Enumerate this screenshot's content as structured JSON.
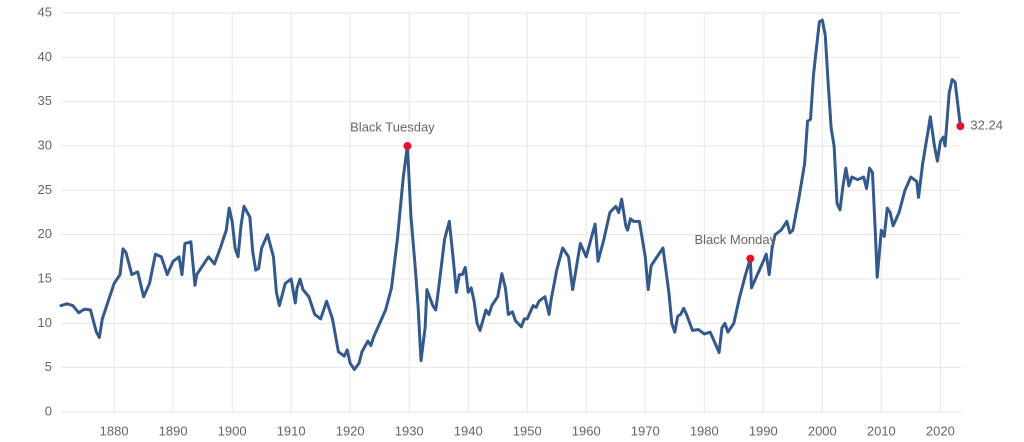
{
  "chart_data": {
    "type": "line",
    "xlim": [
      1871,
      2023.5
    ],
    "ylim": [
      0,
      45
    ],
    "xticks": [
      1880,
      1890,
      1900,
      1910,
      1920,
      1930,
      1940,
      1950,
      1960,
      1970,
      1980,
      1990,
      2000,
      2010,
      2020
    ],
    "yticks": [
      0,
      5,
      10,
      15,
      20,
      25,
      30,
      35,
      40,
      45
    ],
    "grid": true,
    "series": [
      {
        "color": "#34598c",
        "x": [
          1871,
          1872,
          1873,
          1874,
          1875,
          1876,
          1877,
          1877.5,
          1878,
          1879,
          1880,
          1881,
          1881.5,
          1882,
          1883,
          1884,
          1885,
          1886,
          1887,
          1888,
          1889,
          1890,
          1891,
          1891.5,
          1892,
          1893,
          1893.7,
          1894,
          1895,
          1896,
          1897,
          1898,
          1899,
          1899.5,
          1900,
          1900.5,
          1901,
          1901.5,
          1902,
          1903,
          1903.5,
          1904,
          1904.5,
          1905,
          1906,
          1907,
          1907.5,
          1908,
          1909,
          1910,
          1910.7,
          1911,
          1911.5,
          1912,
          1913,
          1914,
          1915,
          1916,
          1917,
          1918,
          1919,
          1919.5,
          1920,
          1920.7,
          1921.5,
          1922,
          1923,
          1923.5,
          1924,
          1925,
          1926,
          1927,
          1928,
          1929,
          1929.7,
          1930.3,
          1931,
          1931.5,
          1932,
          1932.7,
          1933,
          1934,
          1934.5,
          1935,
          1936,
          1936.8,
          1937.5,
          1938,
          1938.5,
          1939,
          1939.5,
          1940,
          1940.5,
          1941,
          1941.5,
          1942,
          1943,
          1943.5,
          1944,
          1945,
          1945.7,
          1946.3,
          1946.8,
          1947.5,
          1948,
          1949,
          1949.5,
          1950,
          1951,
          1951.5,
          1952,
          1953,
          1953.7,
          1954,
          1955,
          1956,
          1957,
          1957.7,
          1958,
          1959,
          1960,
          1961,
          1961.5,
          1962,
          1963,
          1964,
          1965,
          1965.5,
          1966,
          1966.7,
          1967,
          1967.5,
          1968,
          1969,
          1970,
          1970.5,
          1971,
          1972,
          1973,
          1974,
          1974.5,
          1975,
          1975.5,
          1976,
          1976.5,
          1977,
          1978,
          1979,
          1980,
          1981,
          1982,
          1982.5,
          1983,
          1983.5,
          1984,
          1985,
          1986,
          1987,
          1987.8,
          1988,
          1989,
          1990,
          1990.5,
          1991,
          1991.5,
          1992,
          1993,
          1994,
          1994.5,
          1995,
          1996,
          1997,
          1997.5,
          1998,
          1998.5,
          1999,
          1999.5,
          2000,
          2000.5,
          2001,
          2001.5,
          2002,
          2002.5,
          2003,
          2003.5,
          2004,
          2004.5,
          2005,
          2006,
          2007,
          2007.5,
          2008,
          2008.5,
          2009,
          2009.3,
          2010,
          2010.5,
          2011,
          2011.5,
          2012,
          2013,
          2014,
          2015,
          2016,
          2016.3,
          2017,
          2018,
          2018.3,
          2019,
          2019.5,
          2020,
          2020.5,
          2020.8,
          2021.5,
          2022,
          2022.5,
          2023.4
        ],
        "values": [
          12.0,
          12.2,
          12.0,
          11.2,
          11.6,
          11.5,
          9.0,
          8.4,
          10.5,
          12.5,
          14.5,
          15.5,
          18.4,
          18.0,
          15.5,
          15.8,
          13.0,
          14.5,
          17.8,
          17.5,
          15.5,
          17.0,
          17.5,
          15.5,
          19.0,
          19.2,
          14.3,
          15.5,
          16.5,
          17.5,
          16.7,
          18.5,
          20.5,
          23.0,
          21.5,
          18.5,
          17.5,
          21.0,
          23.2,
          22.0,
          18.0,
          16.0,
          16.2,
          18.5,
          20.0,
          17.5,
          13.5,
          12.0,
          14.5,
          15.0,
          12.3,
          14.0,
          15.0,
          13.8,
          13.0,
          11.0,
          10.5,
          12.5,
          10.5,
          6.8,
          6.3,
          7.0,
          5.5,
          4.8,
          5.5,
          6.8,
          8.0,
          7.5,
          8.5,
          10.0,
          11.5,
          14.0,
          19.5,
          26.5,
          30.0,
          22.0,
          16.5,
          12.0,
          5.8,
          9.5,
          13.8,
          12.0,
          11.5,
          14.0,
          19.5,
          21.5,
          17.0,
          13.5,
          15.5,
          15.5,
          16.3,
          13.5,
          14.0,
          12.5,
          10.0,
          9.2,
          11.5,
          11.0,
          12.0,
          13.0,
          15.6,
          14.0,
          11.0,
          11.3,
          10.3,
          9.6,
          10.5,
          10.5,
          12.0,
          11.8,
          12.5,
          13.0,
          11.0,
          12.5,
          16.0,
          18.5,
          17.5,
          13.8,
          15.0,
          19.0,
          17.5,
          20.0,
          21.2,
          17.0,
          19.5,
          22.5,
          23.2,
          22.5,
          24.0,
          21.0,
          20.5,
          21.8,
          21.5,
          21.5,
          17.5,
          13.8,
          16.5,
          17.5,
          18.5,
          13.5,
          10.0,
          9.0,
          10.8,
          11.0,
          11.7,
          11.0,
          9.2,
          9.3,
          8.8,
          9.0,
          7.5,
          6.7,
          9.5,
          10.0,
          9.0,
          10.0,
          13.0,
          15.5,
          17.3,
          14.0,
          15.5,
          17.0,
          17.8,
          15.5,
          18.5,
          20.0,
          20.5,
          21.5,
          20.2,
          20.5,
          24.0,
          28.0,
          32.8,
          33.0,
          38.0,
          41.0,
          44.0,
          44.2,
          42.5,
          37.0,
          32.0,
          30.0,
          23.5,
          22.8,
          25.5,
          27.5,
          25.5,
          26.5,
          26.2,
          26.5,
          25.2,
          27.5,
          27.0,
          20.0,
          15.2,
          20.5,
          19.8,
          23.0,
          22.5,
          21.0,
          22.5,
          25.0,
          26.5,
          26.0,
          24.2,
          28.0,
          32.0,
          33.3,
          30.0,
          28.3,
          30.5,
          31.0,
          30.0,
          36.0,
          37.5,
          37.2,
          32.24
        ]
      }
    ],
    "annotations": [
      {
        "label": "Black Tuesday",
        "x": 1929.7,
        "y": 30.0
      },
      {
        "label": "Black Monday",
        "x": 1987.8,
        "y": 17.3
      },
      {
        "label": "32.24",
        "x": 2023.4,
        "y": 32.24
      }
    ]
  }
}
